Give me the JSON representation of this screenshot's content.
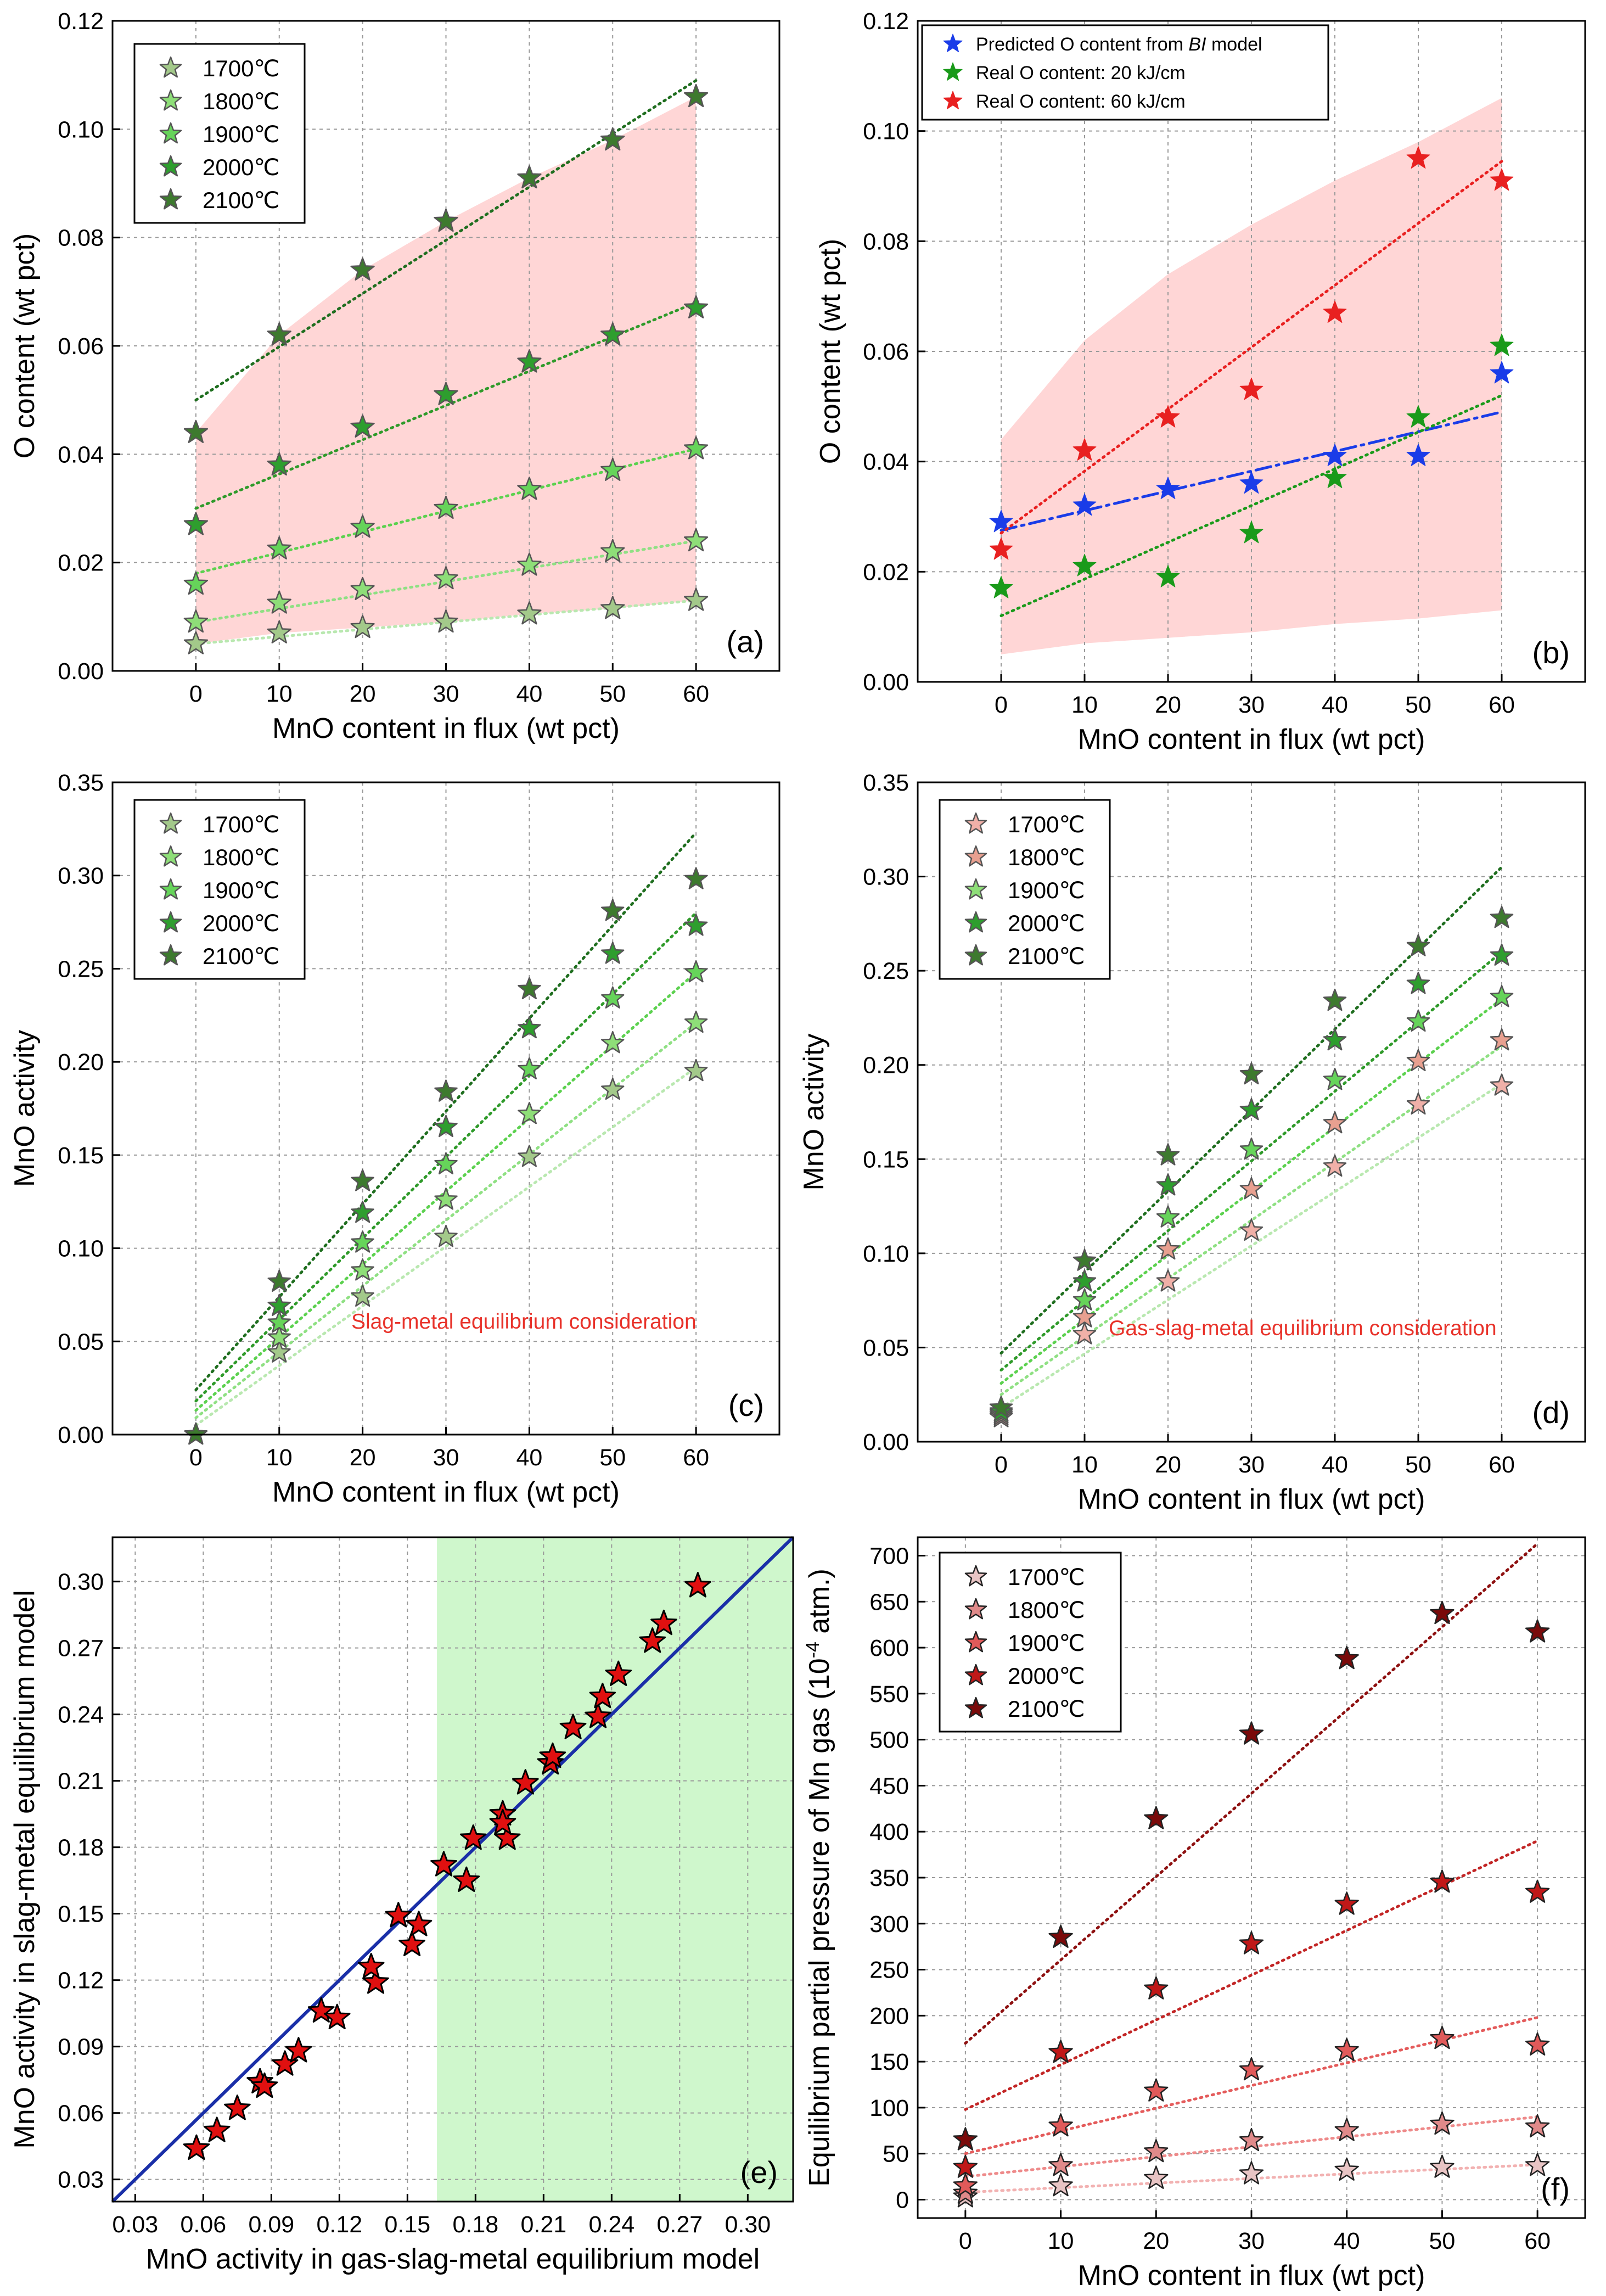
{
  "colors": {
    "temps_green": [
      "#a3c98a",
      "#8ede78",
      "#66d45a",
      "#2e9e2e",
      "#3d7a2e"
    ],
    "temps_red": [
      "#e8c4c4",
      "#e08a8a",
      "#e05a5a",
      "#c01818",
      "#7a0a0a"
    ],
    "star_edge": "#555555",
    "fit_green": [
      "#b9e8b0",
      "#8fe083",
      "#5cd14f",
      "#2f9a2a",
      "#1f6e1f"
    ],
    "fit_red": [
      "#f2b2b2",
      "#ee8a8a",
      "#e45b5b",
      "#c22525",
      "#8e1010"
    ],
    "shade_pink": "#ffd6d6",
    "shade_green": "#cff7cc",
    "blue": "#1a3ce8",
    "green": "#1a9a1a",
    "red": "#e82020",
    "navy": "#1a2fa8"
  },
  "chart_data": [
    {
      "id": "a",
      "type": "scatter",
      "panel_label": "(a)",
      "xlabel": "MnO content in flux (wt pct)",
      "ylabel": "O content (wt pct)",
      "xlim": [
        -10,
        70
      ],
      "ylim": [
        0,
        0.12
      ],
      "xticks": [
        0,
        10,
        20,
        30,
        40,
        50,
        60
      ],
      "yticks": [
        0.0,
        0.02,
        0.04,
        0.06,
        0.08,
        0.1,
        0.12
      ],
      "xtick_labels": [
        "0",
        "10",
        "20",
        "30",
        "40",
        "50",
        "60"
      ],
      "ytick_labels": [
        "0.00",
        "0.02",
        "0.04",
        "0.06",
        "0.08",
        "0.10",
        "0.12"
      ],
      "x": [
        0,
        10,
        20,
        30,
        40,
        50,
        60
      ],
      "legend_loc": "top-left",
      "series": [
        {
          "name": "1700℃",
          "values": [
            0.005,
            0.007,
            0.008,
            0.009,
            0.0105,
            0.0115,
            0.013
          ],
          "fit": [
            0.005,
            0.013
          ]
        },
        {
          "name": "1800℃",
          "values": [
            0.009,
            0.0125,
            0.015,
            0.017,
            0.0195,
            0.022,
            0.024
          ],
          "fit": [
            0.009,
            0.024
          ]
        },
        {
          "name": "1900℃",
          "values": [
            0.016,
            0.0225,
            0.0265,
            0.03,
            0.0335,
            0.037,
            0.041
          ],
          "fit": [
            0.018,
            0.041
          ]
        },
        {
          "name": "2000℃",
          "values": [
            0.027,
            0.038,
            0.045,
            0.051,
            0.057,
            0.062,
            0.067
          ],
          "fit": [
            0.03,
            0.068
          ]
        },
        {
          "name": "2100℃",
          "values": [
            0.044,
            0.062,
            0.074,
            0.083,
            0.091,
            0.098,
            0.106
          ],
          "fit": [
            0.05,
            0.109
          ]
        }
      ],
      "shade": {
        "upper": [
          0.044,
          0.062,
          0.074,
          0.083,
          0.091,
          0.098,
          0.106
        ],
        "lower": [
          0.005,
          0.007,
          0.008,
          0.009,
          0.0105,
          0.0115,
          0.013
        ]
      }
    },
    {
      "id": "b",
      "type": "scatter",
      "panel_label": "(b)",
      "xlabel": "MnO content in flux (wt pct)",
      "ylabel": "O content (wt pct)",
      "xlim": [
        -10,
        70
      ],
      "ylim": [
        0,
        0.12
      ],
      "xticks": [
        0,
        10,
        20,
        30,
        40,
        50,
        60
      ],
      "yticks": [
        0.0,
        0.02,
        0.04,
        0.06,
        0.08,
        0.1,
        0.12
      ],
      "xtick_labels": [
        "0",
        "10",
        "20",
        "30",
        "40",
        "50",
        "60"
      ],
      "ytick_labels": [
        "0.00",
        "0.02",
        "0.04",
        "0.06",
        "0.08",
        "0.10",
        "0.12"
      ],
      "x": [
        0,
        10,
        20,
        30,
        40,
        50,
        60
      ],
      "legend_loc": "top-left",
      "legend_b": {
        "pred_prefix": "Predicted O content from ",
        "pred_em": "BI",
        "pred_suffix": " model",
        "real20": "Real O content: 20 kJ/cm",
        "real60": "Real O content: 60 kJ/cm"
      },
      "series": [
        {
          "name": "Predicted O content from BI model",
          "values": [
            0.029,
            0.032,
            0.035,
            0.036,
            0.041,
            0.041,
            0.056
          ],
          "fit": [
            0.0275,
            0.049
          ]
        },
        {
          "name": "Real O content: 20 kJ/cm",
          "values": [
            0.017,
            0.021,
            0.019,
            0.027,
            0.037,
            0.048,
            0.061
          ],
          "fit": [
            0.012,
            0.052
          ]
        },
        {
          "name": "Real O content: 60 kJ/cm",
          "values": [
            0.024,
            0.042,
            0.048,
            0.053,
            0.067,
            0.095,
            0.091
          ],
          "fit": [
            0.027,
            0.0945
          ]
        }
      ],
      "shade": {
        "upper": [
          0.044,
          0.062,
          0.074,
          0.083,
          0.091,
          0.098,
          0.106
        ],
        "lower": [
          0.005,
          0.007,
          0.008,
          0.009,
          0.0105,
          0.0115,
          0.013
        ]
      }
    },
    {
      "id": "c",
      "type": "scatter",
      "panel_label": "(c)",
      "annotation": "Slag-metal equilibrium consideration",
      "xlabel": "MnO content in flux (wt pct)",
      "ylabel": "MnO activity",
      "xlim": [
        -10,
        70
      ],
      "ylim": [
        0,
        0.35
      ],
      "xticks": [
        0,
        10,
        20,
        30,
        40,
        50,
        60
      ],
      "yticks": [
        0.0,
        0.05,
        0.1,
        0.15,
        0.2,
        0.25,
        0.3,
        0.35
      ],
      "xtick_labels": [
        "0",
        "10",
        "20",
        "30",
        "40",
        "50",
        "60"
      ],
      "ytick_labels": [
        "0.00",
        "0.05",
        "0.10",
        "0.15",
        "0.20",
        "0.25",
        "0.30",
        "0.35"
      ],
      "x": [
        0,
        10,
        20,
        30,
        40,
        50,
        60
      ],
      "legend_loc": "top-left",
      "series": [
        {
          "name": "1700℃",
          "values": [
            0.0,
            0.044,
            0.074,
            0.106,
            0.149,
            0.185,
            0.195
          ],
          "fit": [
            0.005,
            0.197
          ]
        },
        {
          "name": "1800℃",
          "values": [
            0.0,
            0.052,
            0.088,
            0.126,
            0.172,
            0.21,
            0.221
          ],
          "fit": [
            0.009,
            0.221
          ]
        },
        {
          "name": "1900℃",
          "values": [
            0.0,
            0.06,
            0.103,
            0.145,
            0.196,
            0.234,
            0.248
          ],
          "fit": [
            0.013,
            0.248
          ]
        },
        {
          "name": "2000℃",
          "values": [
            0.0,
            0.069,
            0.119,
            0.165,
            0.218,
            0.258,
            0.273
          ],
          "fit": [
            0.018,
            0.28
          ]
        },
        {
          "name": "2100℃",
          "values": [
            0.0,
            0.082,
            0.136,
            0.184,
            0.239,
            0.281,
            0.298
          ],
          "fit": [
            0.024,
            0.323
          ]
        }
      ]
    },
    {
      "id": "d",
      "type": "scatter",
      "panel_label": "(d)",
      "annotation": "Gas-slag-metal equilibrium consideration",
      "xlabel": "MnO content in flux (wt pct)",
      "ylabel": "MnO activity",
      "xlim": [
        -10,
        70
      ],
      "ylim": [
        0,
        0.35
      ],
      "xticks": [
        0,
        10,
        20,
        30,
        40,
        50,
        60
      ],
      "yticks": [
        0.0,
        0.05,
        0.1,
        0.15,
        0.2,
        0.25,
        0.3,
        0.35
      ],
      "xtick_labels": [
        "0",
        "10",
        "20",
        "30",
        "40",
        "50",
        "60"
      ],
      "ytick_labels": [
        "0.00",
        "0.05",
        "0.10",
        "0.15",
        "0.20",
        "0.25",
        "0.30",
        "0.35"
      ],
      "x": [
        0,
        10,
        20,
        30,
        40,
        50,
        60
      ],
      "legend_loc": "top-left",
      "series": [
        {
          "name": "1700℃",
          "values": [
            0.013,
            0.057,
            0.085,
            0.112,
            0.146,
            0.179,
            0.189
          ],
          "fit": [
            0.018,
            0.19
          ]
        },
        {
          "name": "1800℃",
          "values": [
            0.014,
            0.066,
            0.102,
            0.134,
            0.169,
            0.202,
            0.213
          ],
          "fit": [
            0.025,
            0.21
          ]
        },
        {
          "name": "1900℃",
          "values": [
            0.015,
            0.075,
            0.119,
            0.155,
            0.192,
            0.223,
            0.236
          ],
          "fit": [
            0.031,
            0.235
          ]
        },
        {
          "name": "2000℃",
          "values": [
            0.016,
            0.085,
            0.136,
            0.176,
            0.213,
            0.243,
            0.258
          ],
          "fit": [
            0.038,
            0.26
          ]
        },
        {
          "name": "2100℃",
          "values": [
            0.018,
            0.096,
            0.152,
            0.195,
            0.234,
            0.263,
            0.278
          ],
          "fit": [
            0.047,
            0.305
          ]
        }
      ]
    },
    {
      "id": "e",
      "type": "scatter",
      "panel_label": "(e)",
      "xlabel": "MnO activity in gas-slag-metal equilibrium model",
      "ylabel": "MnO activity in slag-metal equilibrium model",
      "xlim": [
        0.02,
        0.32
      ],
      "ylim": [
        0.02,
        0.32
      ],
      "xticks": [
        0.03,
        0.06,
        0.09,
        0.12,
        0.15,
        0.18,
        0.21,
        0.24,
        0.27,
        0.3
      ],
      "yticks": [
        0.03,
        0.06,
        0.09,
        0.12,
        0.15,
        0.18,
        0.21,
        0.24,
        0.27,
        0.3
      ],
      "xtick_labels": [
        "0.03",
        "0.06",
        "0.09",
        "0.12",
        "0.15",
        "0.18",
        "0.21",
        "0.24",
        "0.27",
        "0.30"
      ],
      "ytick_labels": [
        "0.03",
        "0.06",
        "0.09",
        "0.12",
        "0.15",
        "0.18",
        "0.21",
        "0.24",
        "0.27",
        "0.30"
      ],
      "green_band_x": [
        0.163,
        0.32
      ],
      "identity_line": [
        0.02,
        0.32
      ],
      "points": [
        [
          0.057,
          0.044
        ],
        [
          0.066,
          0.052
        ],
        [
          0.075,
          0.062
        ],
        [
          0.085,
          0.074
        ],
        [
          0.087,
          0.072
        ],
        [
          0.096,
          0.082
        ],
        [
          0.102,
          0.088
        ],
        [
          0.112,
          0.106
        ],
        [
          0.119,
          0.103
        ],
        [
          0.136,
          0.119
        ],
        [
          0.134,
          0.126
        ],
        [
          0.146,
          0.149
        ],
        [
          0.152,
          0.136
        ],
        [
          0.155,
          0.145
        ],
        [
          0.166,
          0.172
        ],
        [
          0.176,
          0.165
        ],
        [
          0.179,
          0.184
        ],
        [
          0.192,
          0.195
        ],
        [
          0.194,
          0.184
        ],
        [
          0.192,
          0.191
        ],
        [
          0.202,
          0.209
        ],
        [
          0.213,
          0.218
        ],
        [
          0.214,
          0.221
        ],
        [
          0.223,
          0.234
        ],
        [
          0.234,
          0.239
        ],
        [
          0.236,
          0.248
        ],
        [
          0.243,
          0.258
        ],
        [
          0.258,
          0.273
        ],
        [
          0.263,
          0.281
        ],
        [
          0.278,
          0.298
        ]
      ]
    },
    {
      "id": "f",
      "type": "scatter",
      "panel_label": "(f)",
      "xlabel": "MnO content in flux (wt pct)",
      "ylabel_prefix": "Equilibrium partial pressure of Mn gas (10",
      "ylabel_sup": "-4",
      "ylabel_suffix": " atm.)",
      "xlim": [
        -5,
        65
      ],
      "ylim": [
        -20,
        720
      ],
      "xticks": [
        0,
        10,
        20,
        30,
        40,
        50,
        60
      ],
      "yticks": [
        0,
        50,
        100,
        150,
        200,
        250,
        300,
        350,
        400,
        450,
        500,
        550,
        600,
        650,
        700
      ],
      "xtick_labels": [
        "0",
        "10",
        "20",
        "30",
        "40",
        "50",
        "60"
      ],
      "ytick_labels": [
        "0",
        "50",
        "100",
        "150",
        "200",
        "250",
        "300",
        "350",
        "400",
        "450",
        "500",
        "550",
        "600",
        "650",
        "700"
      ],
      "x": [
        0,
        10,
        20,
        30,
        40,
        50,
        60
      ],
      "legend_loc": "top-left",
      "series": [
        {
          "name": "1700℃",
          "values": [
            3,
            15,
            23,
            28,
            32,
            35,
            37
          ],
          "fit": [
            8,
            38
          ]
        },
        {
          "name": "1800℃",
          "values": [
            7,
            37,
            52,
            64,
            75,
            82,
            79
          ],
          "fit": [
            25,
            90
          ]
        },
        {
          "name": "1900℃",
          "values": [
            15,
            80,
            118,
            141,
            162,
            175,
            168
          ],
          "fit": [
            50,
            198
          ]
        },
        {
          "name": "2000℃",
          "values": [
            35,
            160,
            229,
            278,
            321,
            345,
            334
          ],
          "fit": [
            98,
            390
          ]
        },
        {
          "name": "2100℃",
          "values": [
            65,
            285,
            414,
            506,
            588,
            637,
            617
          ],
          "fit": [
            170,
            713
          ]
        }
      ]
    }
  ]
}
